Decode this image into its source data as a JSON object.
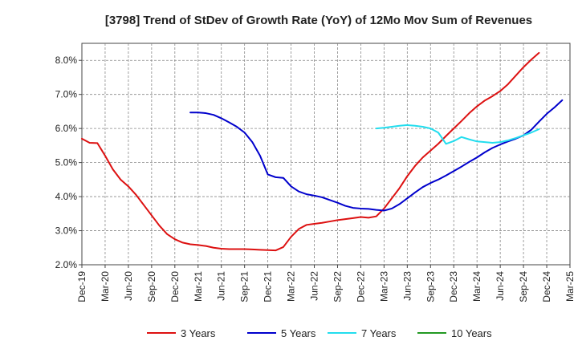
{
  "chart_data": {
    "type": "line",
    "title": "[3798]  Trend of StDev of Growth Rate (YoY) of 12Mo Mov Sum of Revenues",
    "xlabel": "",
    "ylabel": "",
    "ylim": [
      2.0,
      8.5
    ],
    "yticks": [
      2.0,
      3.0,
      4.0,
      5.0,
      6.0,
      7.0,
      8.0
    ],
    "ytick_labels": [
      "2.0%",
      "3.0%",
      "4.0%",
      "5.0%",
      "6.0%",
      "7.0%",
      "8.0%"
    ],
    "xlim": [
      0,
      63
    ],
    "xticks": [
      0,
      3,
      6,
      9,
      12,
      15,
      18,
      21,
      24,
      27,
      30,
      33,
      36,
      39,
      42,
      45,
      48,
      51,
      54,
      57,
      60,
      63
    ],
    "xtick_labels": [
      "Dec-19",
      "Mar-20",
      "Jun-20",
      "Sep-20",
      "Dec-20",
      "Mar-21",
      "Jun-21",
      "Sep-21",
      "Dec-21",
      "Mar-22",
      "Jun-22",
      "Sep-22",
      "Dec-22",
      "Mar-23",
      "Jun-23",
      "Sep-23",
      "Dec-23",
      "Mar-24",
      "Jun-24",
      "Sep-24",
      "Dec-24",
      "Mar-25"
    ],
    "grid": true,
    "legend_position": "bottom",
    "series": [
      {
        "name": "3 Years",
        "color": "#dd1111",
        "x_start": 0,
        "values": [
          5.7,
          5.58,
          5.57,
          5.2,
          4.8,
          4.5,
          4.3,
          4.05,
          3.75,
          3.45,
          3.15,
          2.9,
          2.75,
          2.65,
          2.6,
          2.58,
          2.55,
          2.5,
          2.47,
          2.46,
          2.46,
          2.46,
          2.45,
          2.44,
          2.43,
          2.42,
          2.52,
          2.82,
          3.05,
          3.17,
          3.2,
          3.23,
          3.27,
          3.31,
          3.34,
          3.37,
          3.4,
          3.38,
          3.42,
          3.65,
          3.95,
          4.25,
          4.6,
          4.9,
          5.15,
          5.35,
          5.55,
          5.78,
          6.0,
          6.22,
          6.45,
          6.65,
          6.82,
          6.95,
          7.1,
          7.3,
          7.55,
          7.8,
          8.02,
          8.22
        ]
      },
      {
        "name": "5 Years",
        "color": "#0000cc",
        "x_start": 14,
        "values": [
          6.47,
          6.47,
          6.45,
          6.4,
          6.3,
          6.18,
          6.05,
          5.88,
          5.6,
          5.2,
          4.65,
          4.57,
          4.55,
          4.3,
          4.15,
          4.07,
          4.03,
          3.98,
          3.9,
          3.82,
          3.73,
          3.67,
          3.65,
          3.64,
          3.61,
          3.59,
          3.65,
          3.78,
          3.95,
          4.12,
          4.28,
          4.4,
          4.5,
          4.62,
          4.75,
          4.88,
          5.02,
          5.15,
          5.3,
          5.43,
          5.53,
          5.62,
          5.7,
          5.8,
          5.96,
          6.2,
          6.43,
          6.62,
          6.83
        ]
      },
      {
        "name": "7 Years",
        "color": "#22ddee",
        "x_start": 38,
        "values": [
          6.0,
          6.02,
          6.05,
          6.08,
          6.1,
          6.08,
          6.05,
          6.0,
          5.88,
          5.55,
          5.63,
          5.75,
          5.68,
          5.62,
          5.6,
          5.58,
          5.6,
          5.65,
          5.72,
          5.8,
          5.88,
          5.98
        ]
      },
      {
        "name": "10 Years",
        "color": "#229922",
        "x_start": 0,
        "values": []
      }
    ]
  }
}
